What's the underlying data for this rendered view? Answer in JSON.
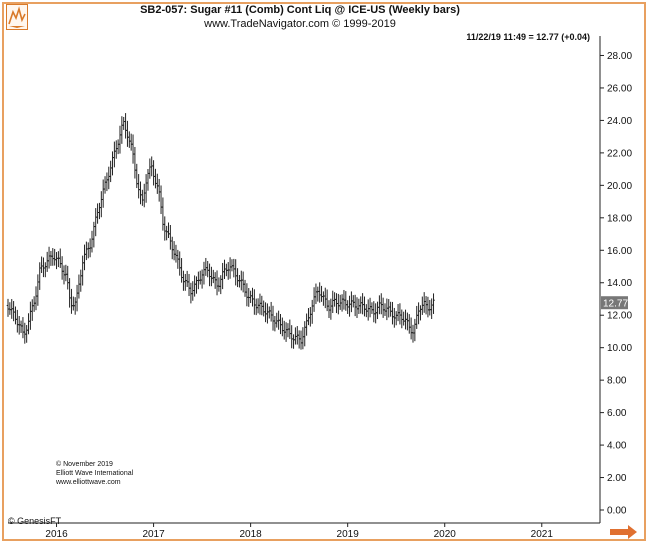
{
  "header": {
    "title": "SB2-057:  Sugar #11 (Comb) Cont Liq @ ICE-US  (Weekly bars)",
    "subtitle": "www.TradeNavigator.com © 1999-2019",
    "quote": "11/22/19 11:49 = 12.77 (+0.04)"
  },
  "footer": {
    "copyright_lines": [
      "© November 2019",
      "Elliott Wave International",
      "www.elliottwave.com"
    ],
    "credit": "© GenesisFT"
  },
  "colors": {
    "frame": "#e8a060",
    "bars": "#222222",
    "last_price_bg": "#777777",
    "arrow": "#e07030"
  },
  "icons": {
    "logo": "elliott-wave-logo-icon",
    "scroll": "right-arrow-icon"
  },
  "chart_data": {
    "type": "ohlc",
    "title": "SB2-057:  Sugar #11 (Comb) Cont Liq @ ICE-US  (Weekly bars)",
    "ylim": [
      -0.8,
      29.2
    ],
    "y_ticks": [
      "0.00",
      "2.00",
      "4.00",
      "6.00",
      "8.00",
      "10.00",
      "12.00",
      "14.00",
      "16.00",
      "18.00",
      "20.00",
      "22.00",
      "24.00",
      "26.00",
      "28.00"
    ],
    "x_ticks": [
      "2016",
      "2017",
      "2018",
      "2019",
      "2020",
      "2021"
    ],
    "x_tick_years": [
      2016,
      2017,
      2018,
      2019,
      2020,
      2021
    ],
    "xlim": [
      2015.5,
      2021.6
    ],
    "last_price": "12.77",
    "series": [
      {
        "x": [
          2015.5,
          2015.62,
          2015.66,
          2015.72,
          2015.78,
          2015.83,
          2015.9,
          2015.97,
          2016.03,
          2016.1,
          2016.14,
          2016.2,
          2016.27,
          2016.35,
          2016.44,
          2016.52,
          2016.6,
          2016.66,
          2016.69,
          2016.73,
          2016.78,
          2016.83,
          2016.88,
          2016.93,
          2016.98,
          2017.05,
          2017.1,
          2017.16,
          2017.22,
          2017.3,
          2017.38,
          2017.44,
          2017.5,
          2017.56,
          2017.62,
          2017.66,
          2017.7,
          2017.78,
          2017.86,
          2017.92,
          2017.98,
          2018.05,
          2018.15,
          2018.25,
          2018.35,
          2018.45,
          2018.52,
          2018.58,
          2018.64,
          2018.7,
          2018.76,
          2018.8,
          2018.86,
          2018.94,
          2019.02,
          2019.1,
          2019.18,
          2019.26,
          2019.34,
          2019.42,
          2019.5,
          2019.55,
          2019.6,
          2019.64,
          2019.68,
          2019.74,
          2019.78,
          2019.82,
          2019.86,
          2019.89
        ],
        "close": [
          12.6,
          11.4,
          10.7,
          11.8,
          13.1,
          14.8,
          15.3,
          15.7,
          15.2,
          14.4,
          12.8,
          12.7,
          15.4,
          16.4,
          18.8,
          20.4,
          22.0,
          23.3,
          23.8,
          23.2,
          22.1,
          20.2,
          18.8,
          20.6,
          21.1,
          19.7,
          17.6,
          16.7,
          15.8,
          14.3,
          13.5,
          13.9,
          14.6,
          14.8,
          14.1,
          13.8,
          14.4,
          15.1,
          14.4,
          13.8,
          13.1,
          12.7,
          12.3,
          11.7,
          11.1,
          10.6,
          10.5,
          11.5,
          12.8,
          13.6,
          12.9,
          12.5,
          12.8,
          12.8,
          12.7,
          12.6,
          12.5,
          12.2,
          12.6,
          12.3,
          11.9,
          12.0,
          11.6,
          11.2,
          11.0,
          12.5,
          12.8,
          12.3,
          12.7,
          12.77
        ]
      }
    ]
  }
}
